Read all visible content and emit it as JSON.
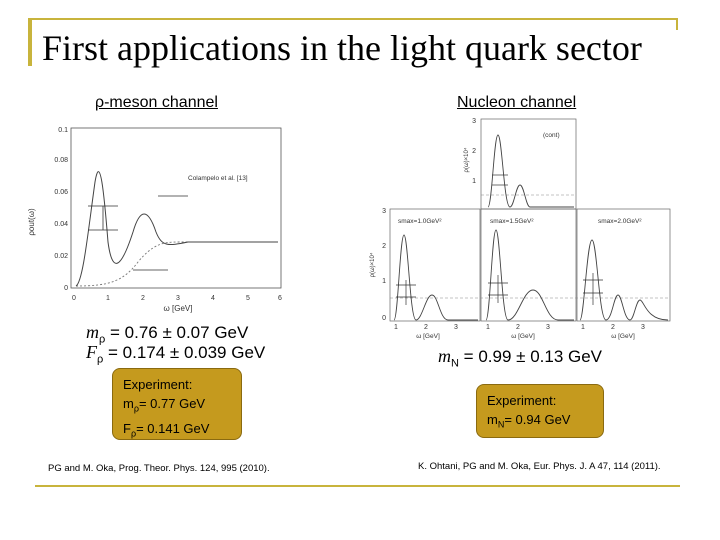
{
  "title": "First applications in the light quark sector",
  "rho": {
    "heading": "ρ-meson channel",
    "plot_label": "Colampelo et al. [13]",
    "xlabel": "ω [GeV]",
    "ylabel": "ρout(ω)",
    "x_ticks": [
      "0",
      "1",
      "2",
      "3",
      "4",
      "5",
      "6"
    ],
    "y_ticks": [
      "0",
      "0.02",
      "0.04",
      "0.06",
      "0.08",
      "0.1"
    ],
    "mass_sym": "m",
    "mass_sub": "ρ",
    "mass_val": " = 0.76 ± 0.07 GeV",
    "decay_sym": "F",
    "decay_sub": "ρ",
    "decay_val": " = 0.174 ± 0.039 GeV",
    "exp_title": "Experiment:",
    "exp_m_label": "m",
    "exp_m_sub": "ρ",
    "exp_m_val": "= 0.77 GeV",
    "exp_f_label": "F",
    "exp_f_sub": "ρ",
    "exp_f_val": "= 0.141 GeV",
    "reference": "PG and M. Oka, Prog. Theor. Phys. 124, 995 (2010)."
  },
  "nucleon": {
    "heading": "Nucleon channel",
    "top_label": "(cont)",
    "top_ylabel": "ρ(ω)×10⁴",
    "panel_labels": [
      "smax=1.0GeV²",
      "smax=1.5GeV²",
      "smax=2.0GeV²"
    ],
    "xlabel": "ω [GeV]",
    "ylabel": "ρ(ω)×10⁴",
    "x_ticks": [
      "1",
      "2",
      "3"
    ],
    "left_y_ticks": [
      "0",
      "1",
      "2",
      "3"
    ],
    "top_y_ticks": [
      "1",
      "2",
      "3"
    ],
    "mass_sym": "m",
    "mass_sub": "N",
    "mass_val": " = 0.99 ± 0.13 GeV",
    "exp_title": "Experiment:",
    "exp_m_label": "m",
    "exp_m_sub": "N",
    "exp_m_val": "= 0.94 GeV",
    "reference": "K. Ohtani, PG and M. Oka, Eur. Phys. J. A 47, 114 (2011)."
  }
}
